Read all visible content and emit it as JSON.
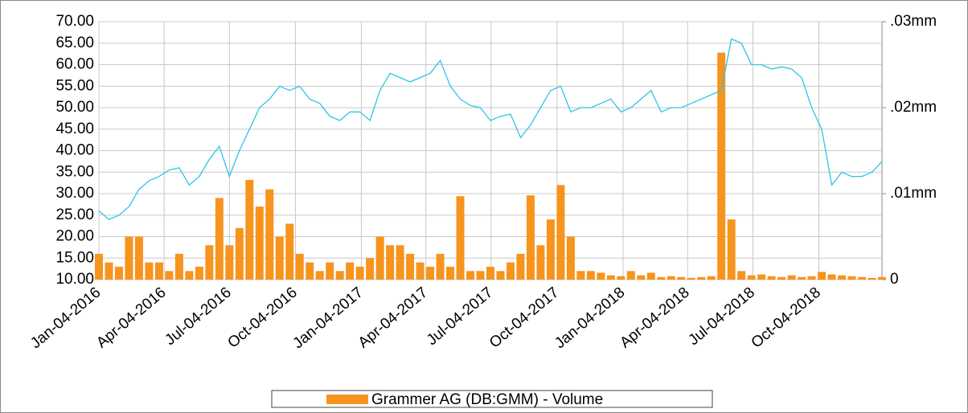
{
  "chart_data": {
    "type": "line-bar",
    "x": [
      "Jan-04-2016",
      "Jan-18-2016",
      "Feb-01-2016",
      "Feb-15-2016",
      "Feb-29-2016",
      "Mar-14-2016",
      "Mar-28-2016",
      "Apr-11-2016",
      "Apr-25-2016",
      "May-09-2016",
      "May-23-2016",
      "Jun-06-2016",
      "Jun-20-2016",
      "Jul-04-2016",
      "Jul-18-2016",
      "Aug-01-2016",
      "Aug-15-2016",
      "Aug-29-2016",
      "Sep-12-2016",
      "Sep-26-2016",
      "Oct-10-2016",
      "Oct-24-2016",
      "Nov-07-2016",
      "Nov-21-2016",
      "Dec-05-2016",
      "Dec-19-2016",
      "Jan-02-2017",
      "Jan-16-2017",
      "Jan-30-2017",
      "Feb-13-2017",
      "Feb-27-2017",
      "Mar-13-2017",
      "Mar-27-2017",
      "Apr-10-2017",
      "Apr-24-2017",
      "May-08-2017",
      "May-22-2017",
      "Jun-05-2017",
      "Jun-19-2017",
      "Jul-03-2017",
      "Jul-17-2017",
      "Jul-31-2017",
      "Aug-14-2017",
      "Aug-28-2017",
      "Sep-11-2017",
      "Sep-25-2017",
      "Oct-09-2017",
      "Oct-23-2017",
      "Nov-06-2017",
      "Nov-20-2017",
      "Dec-04-2017",
      "Dec-18-2017",
      "Jan-01-2018",
      "Jan-15-2018",
      "Jan-29-2018",
      "Feb-12-2018",
      "Feb-26-2018",
      "Mar-12-2018",
      "Mar-26-2018",
      "Apr-09-2018",
      "Apr-23-2018",
      "May-07-2018",
      "May-21-2018",
      "Jun-04-2018",
      "Jun-18-2018",
      "Jul-02-2018",
      "Jul-16-2018",
      "Jul-30-2018",
      "Aug-13-2018",
      "Aug-27-2018",
      "Sep-10-2018",
      "Sep-24-2018",
      "Oct-08-2018",
      "Oct-22-2018",
      "Nov-05-2018",
      "Nov-19-2018",
      "Dec-03-2018",
      "Dec-17-2018",
      "Dec-31-2018"
    ],
    "series": [
      {
        "color": "#2ec4e8",
        "kind": "line",
        "values": [
          26,
          24,
          25,
          27,
          31,
          33,
          34,
          35.5,
          36,
          32,
          34,
          38,
          41,
          34,
          40,
          45,
          50,
          52,
          55,
          54,
          55,
          52,
          51,
          48,
          47,
          49,
          49,
          47,
          54,
          58,
          57,
          56,
          57,
          58,
          61,
          55,
          52,
          50.5,
          50,
          47,
          48,
          48.5,
          43,
          46,
          50,
          54,
          55,
          49,
          50,
          50,
          51,
          52,
          49,
          50,
          52,
          54,
          49,
          50,
          50,
          51,
          52,
          53,
          54,
          66,
          65,
          60,
          60,
          59,
          59.5,
          59,
          57,
          50,
          45,
          32,
          35,
          34,
          34,
          35,
          37.5
        ]
      },
      {
        "name": "Grammer AG (DB:GMM) - Volume",
        "color": "#f7941d",
        "kind": "bar",
        "axis": "y2",
        "values": [
          0.003,
          0.002,
          0.0015,
          0.005,
          0.005,
          0.002,
          0.002,
          0.001,
          0.003,
          0.001,
          0.0015,
          0.004,
          0.0095,
          0.004,
          0.006,
          0.0116,
          0.0085,
          0.0105,
          0.005,
          0.0065,
          0.003,
          0.002,
          0.001,
          0.002,
          0.001,
          0.002,
          0.0015,
          0.0025,
          0.005,
          0.004,
          0.004,
          0.003,
          0.002,
          0.0015,
          0.003,
          0.0015,
          0.0097,
          0.001,
          0.001,
          0.0015,
          0.001,
          0.002,
          0.003,
          0.0098,
          0.004,
          0.007,
          0.011,
          0.005,
          0.001,
          0.001,
          0.0008,
          0.0005,
          0.0004,
          0.001,
          0.0005,
          0.0008,
          0.0003,
          0.0004,
          0.0003,
          0.0002,
          0.0003,
          0.0004,
          0.0264,
          0.007,
          0.001,
          0.0005,
          0.0006,
          0.0004,
          0.0003,
          0.0005,
          0.0003,
          0.0004,
          0.0009,
          0.0006,
          0.0005,
          0.0004,
          0.0003,
          0.0002,
          0.0003
        ]
      }
    ],
    "xlim": [
      "Jan-04-2016",
      "Dec-31-2018"
    ],
    "xticks": [
      "Jan-04-2016",
      "Apr-04-2016",
      "Jul-04-2016",
      "Oct-04-2016",
      "Jan-04-2017",
      "Apr-04-2017",
      "Jul-04-2017",
      "Oct-04-2017",
      "Jan-04-2018",
      "Apr-04-2018",
      "Jul-04-2018",
      "Oct-04-2018"
    ],
    "ylim": [
      10,
      70
    ],
    "yticks": [
      {
        "value": 10,
        "label": "10.00"
      },
      {
        "value": 15,
        "label": "15.00"
      },
      {
        "value": 20,
        "label": "20.00"
      },
      {
        "value": 25,
        "label": "25.00"
      },
      {
        "value": 30,
        "label": "30.00"
      },
      {
        "value": 35,
        "label": "35.00"
      },
      {
        "value": 40,
        "label": "40.00"
      },
      {
        "value": 45,
        "label": "45.00"
      },
      {
        "value": 50,
        "label": "50.00"
      },
      {
        "value": 55,
        "label": "55.00"
      },
      {
        "value": 60,
        "label": "60.00"
      },
      {
        "value": 65,
        "label": "65.00"
      },
      {
        "value": 70,
        "label": "70.00"
      }
    ],
    "y2lim": [
      0,
      0.03
    ],
    "y2ticks": [
      0,
      {
        "value": 0.01,
        "label": ".01mm"
      },
      {
        "value": 0.02,
        "label": ".02mm"
      },
      {
        "value": 0.03,
        "label": ".03mm"
      }
    ],
    "grid": true
  }
}
